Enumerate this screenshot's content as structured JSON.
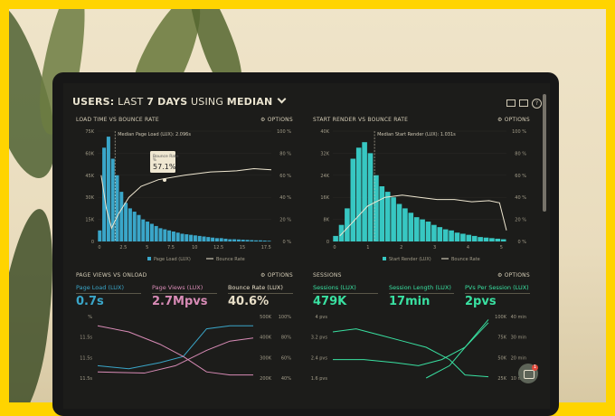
{
  "header": {
    "prefix": "USERS:",
    "mid": " LAST ",
    "days": "7 DAYS",
    "using": " USING ",
    "median": "MEDIAN"
  },
  "colors": {
    "frame": "#ffd400",
    "teal": "#37c7c2",
    "blue": "#3aa6c9",
    "pink": "#d88bb6",
    "green": "#39e0a1",
    "bg": "#1c1c1a"
  },
  "options_label": "OPTIONS",
  "panel_load": {
    "title": "LOAD TIME VS BOUNCE RATE",
    "median_label": "Median Page Load (LUX): 2.096s",
    "tooltip_label": "Bounce Rate",
    "tooltip_sub": "%",
    "tooltip_value": "57.1%",
    "y_left": [
      "75K",
      "60K",
      "45K",
      "30K",
      "15K",
      "0"
    ],
    "y_right": [
      "100 %",
      "80 %",
      "60 %",
      "40 %",
      "20 %",
      "0 %"
    ],
    "x_ticks": [
      "0",
      "2.5",
      "5",
      "7.5",
      "10",
      "12.5",
      "15",
      "17.5"
    ],
    "legend_bars": "Page Load (LUX)",
    "legend_line": "Bounce Rate"
  },
  "panel_render": {
    "title": "START RENDER VS BOUNCE RATE",
    "median_label": "Median Start Render (LUX): 1.031s",
    "y_left": [
      "40K",
      "32K",
      "24K",
      "16K",
      "8K",
      "0"
    ],
    "y_right": [
      "100 %",
      "80 %",
      "60 %",
      "40 %",
      "20 %",
      "0 %"
    ],
    "x_ticks": [
      "0",
      "1",
      "2",
      "3",
      "4",
      "5"
    ],
    "legend_bars": "Start Render (LUX)",
    "legend_line": "Bounce Rate"
  },
  "panel_pageviews": {
    "title": "PAGE VIEWS VS ONLOAD",
    "metrics": [
      {
        "label": "Page Load (LUX)",
        "value": "0.7s",
        "color": "#3aa6c9"
      },
      {
        "label": "Page Views (LUX)",
        "value": "2.7Mpvs",
        "color": "#d88bb6"
      },
      {
        "label": "Bounce Rate (LUX)",
        "value": "40.6%",
        "color": "#e8dfc8"
      }
    ],
    "y_left": [
      "%",
      "11.5s",
      "11.5s",
      "11.5s"
    ],
    "y_right_a": [
      "500K",
      "400K",
      "300K",
      "200K"
    ],
    "y_right_b": [
      "100%",
      "80%",
      "60%",
      "40%"
    ]
  },
  "panel_sessions": {
    "title": "SESSIONS",
    "metrics": [
      {
        "label": "Sessions (LUX)",
        "value": "479K",
        "color": "#39e0a1"
      },
      {
        "label": "Session Length (LUX)",
        "value": "17min",
        "color": "#39e0a1"
      },
      {
        "label": "PVs Per Session (LUX)",
        "value": "2pvs",
        "color": "#39e0a1"
      }
    ],
    "y_left": [
      "4 pvs",
      "3.2 pvs",
      "2.4 pvs",
      "1.6 pvs"
    ],
    "y_right_a": [
      "100K",
      "75K",
      "50K",
      "25K"
    ],
    "y_right_b": [
      "40 min",
      "30 min",
      "20 min",
      "10 min"
    ]
  },
  "chat": {
    "badge": "1"
  }
}
